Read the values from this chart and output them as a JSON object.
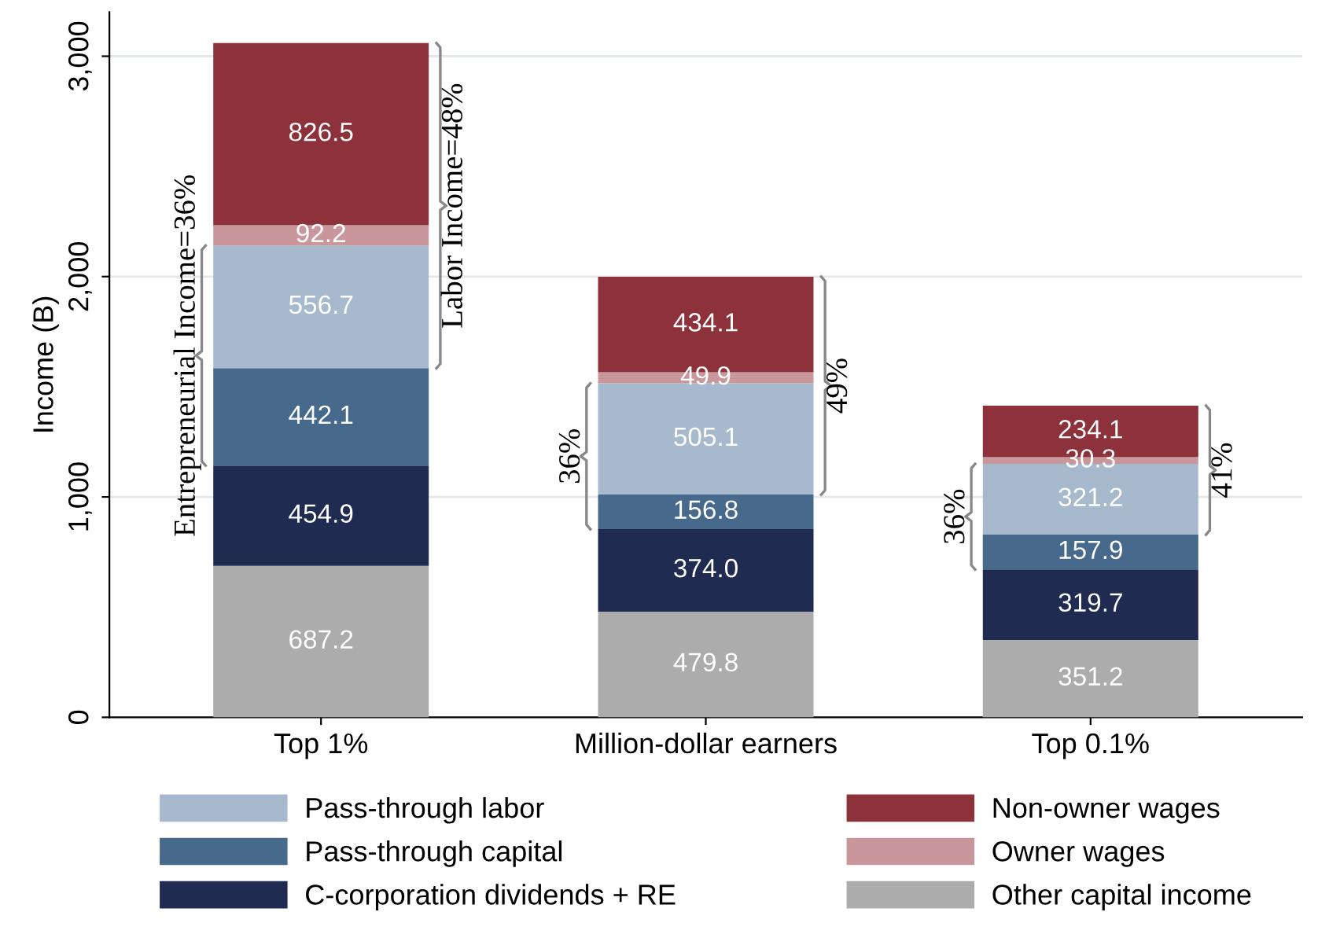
{
  "chart_data": {
    "type": "bar",
    "stacked": true,
    "ylabel": "Income (B)",
    "categories": [
      "Top 1%",
      "Million-dollar earners",
      "Top 0.1%"
    ],
    "series": [
      {
        "name": "Other capital income",
        "color": "#acacac",
        "values": [
          687.2,
          479.8,
          351.2
        ],
        "value_labels": [
          "687.2",
          "479.8",
          "351.2"
        ]
      },
      {
        "name": "C-corporation dividends + RE",
        "color": "#1f2b50",
        "values": [
          454.9,
          374.0,
          319.7
        ],
        "value_labels": [
          "454.9",
          "374.0",
          "319.7"
        ]
      },
      {
        "name": "Pass-through capital",
        "color": "#476a8c",
        "values": [
          442.1,
          156.8,
          157.9
        ],
        "value_labels": [
          "442.1",
          "156.8",
          "157.9"
        ]
      },
      {
        "name": "Pass-through labor",
        "color": "#a7b9cc",
        "values": [
          556.7,
          505.1,
          321.2
        ],
        "value_labels": [
          "556.7",
          "505.1",
          "321.2"
        ]
      },
      {
        "name": "Owner wages",
        "color": "#c9979b",
        "values": [
          92.2,
          49.9,
          30.3
        ],
        "value_labels": [
          "92.2",
          "49.9",
          "30.3"
        ]
      },
      {
        "name": "Non-owner wages",
        "color": "#8d313b",
        "values": [
          826.5,
          434.1,
          234.1
        ],
        "value_labels": [
          "826.5",
          "434.1",
          "234.1"
        ]
      }
    ],
    "ylim": [
      0,
      3200
    ],
    "yticks": [
      0,
      {
        "value": 1000,
        "label": "1,000"
      },
      {
        "value": 2000,
        "label": "2,000"
      },
      {
        "value": 3000,
        "label": "3,000"
      }
    ],
    "grid": "y",
    "legend": "bottom",
    "annotations": [
      "Entrepreneurial Income=36%",
      "Labor Income=48%",
      "36%",
      "49%",
      "36%",
      "41%"
    ]
  }
}
